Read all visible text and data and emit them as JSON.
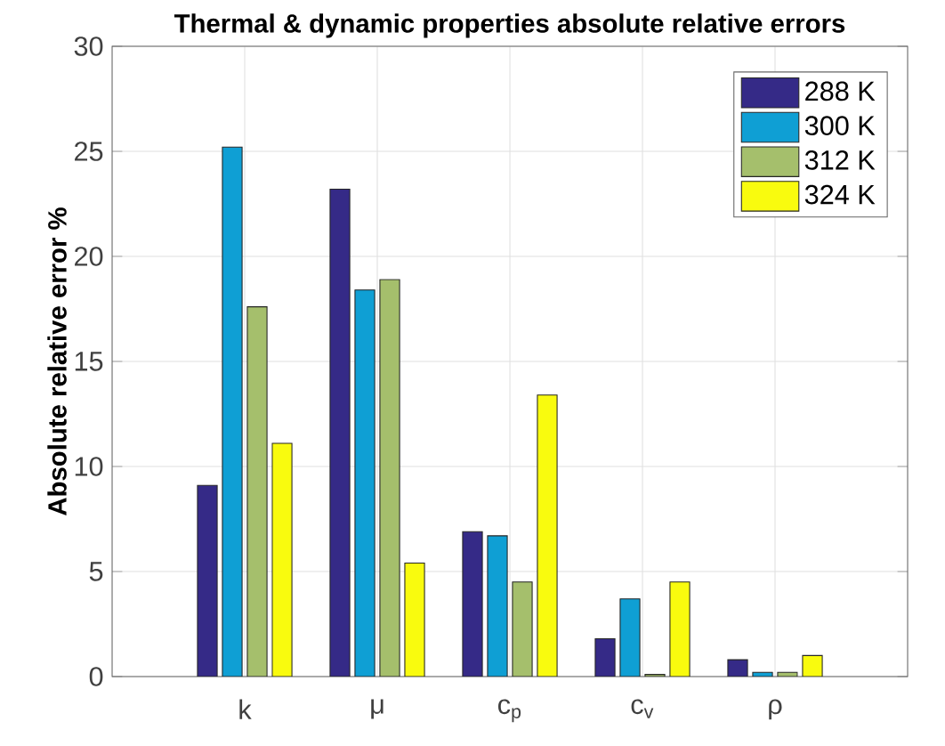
{
  "chart_data": {
    "type": "bar",
    "title": "Thermal & dynamic properties absolute relative errors",
    "ylabel": "Absolute relative error %",
    "categories": [
      "k",
      "μ",
      "c$_{p}$",
      "c$_{v}$",
      "ρ"
    ],
    "series": [
      {
        "name": "288 K",
        "color": "#352a87",
        "values": [
          9.1,
          23.2,
          6.9,
          1.8,
          0.8
        ]
      },
      {
        "name": "300 K",
        "color": "#0f9fd4",
        "values": [
          25.2,
          18.4,
          6.7,
          3.7,
          0.2
        ]
      },
      {
        "name": "312 K",
        "color": "#a5bf6c",
        "values": [
          17.6,
          18.9,
          4.5,
          0.1,
          0.2
        ]
      },
      {
        "name": "324 K",
        "color": "#f9fb0e",
        "values": [
          11.1,
          5.4,
          13.4,
          4.5,
          1.0
        ]
      }
    ],
    "ylim": [
      0,
      30
    ],
    "yticks": [
      0,
      5,
      10,
      15,
      20,
      25,
      30
    ],
    "grid": true,
    "legend": "top right"
  }
}
